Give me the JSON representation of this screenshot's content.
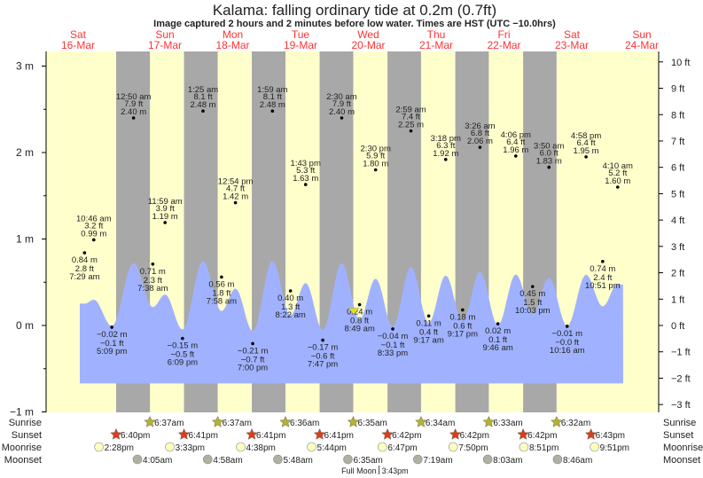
{
  "title": "Kalama: falling  ordinary tide at 0.2m (0.7ft)",
  "subtitle": "Image captured 2 hours and 2 minutes before low water. Times are HST (UTC −10.0hrs)",
  "colors": {
    "day": "#ffffcc",
    "night": "#a8a8a8",
    "tide": "#a0b2ff",
    "day_label": "#ff3333",
    "sunrise": "#b8b030",
    "sunset": "#e03a1a",
    "moonrise": "#ffffc0",
    "moonset": "#b0b0a0",
    "now_marker": "#e8e000"
  },
  "chart_data": {
    "type": "area",
    "title": "Kalama: falling  ordinary tide at 0.2m (0.7ft)",
    "left_axis": {
      "unit": "m",
      "range": [
        -1,
        3
      ],
      "ticks": [
        "3 m",
        "2 m",
        "1 m",
        "0 m",
        "−1 m"
      ],
      "values": [
        3,
        2,
        1,
        0,
        -1
      ]
    },
    "right_axis": {
      "unit": "ft",
      "ticks": [
        "10 ft",
        "9 ft",
        "8 ft",
        "7 ft",
        "6 ft",
        "5 ft",
        "4 ft",
        "3 ft",
        "2 ft",
        "1 ft",
        "0 ft",
        "−1 ft",
        "−2 ft",
        "−3 ft"
      ],
      "values": [
        10,
        9,
        8,
        7,
        6,
        5,
        4,
        3,
        2,
        1,
        0,
        -1,
        -2,
        -3
      ]
    },
    "days": [
      {
        "dow": "Sat",
        "date": "16-Mar"
      },
      {
        "dow": "Sun",
        "date": "17-Mar"
      },
      {
        "dow": "Mon",
        "date": "18-Mar"
      },
      {
        "dow": "Tue",
        "date": "19-Mar"
      },
      {
        "dow": "Wed",
        "date": "20-Mar"
      },
      {
        "dow": "Thu",
        "date": "21-Mar"
      },
      {
        "dow": "Fri",
        "date": "22-Mar"
      },
      {
        "dow": "Sat",
        "date": "23-Mar"
      },
      {
        "dow": "Sun",
        "date": "24-Mar"
      }
    ],
    "extremes": [
      {
        "day": 16,
        "time": "7:29 am",
        "m": "0.84",
        "ft": "2.8",
        "type": "low"
      },
      {
        "day": 16,
        "time": "10:46 am",
        "m": "0.99",
        "ft": "3.2",
        "type": "high"
      },
      {
        "day": 16,
        "time": "5:09 pm",
        "m": "−0.02",
        "ft": "−0.1",
        "type": "low"
      },
      {
        "day": 17,
        "time": "12:50 am",
        "m": "2.40",
        "ft": "7.9",
        "type": "high"
      },
      {
        "day": 17,
        "time": "7:38 am",
        "m": "0.71",
        "ft": "2.3",
        "type": "low"
      },
      {
        "day": 17,
        "time": "11:59 am",
        "m": "1.19",
        "ft": "3.9",
        "type": "high"
      },
      {
        "day": 17,
        "time": "6:09 pm",
        "m": "−0.15",
        "ft": "−0.5",
        "type": "low"
      },
      {
        "day": 18,
        "time": "1:25 am",
        "m": "2.48",
        "ft": "8.1",
        "type": "high"
      },
      {
        "day": 18,
        "time": "7:58 am",
        "m": "0.56",
        "ft": "1.8",
        "type": "low"
      },
      {
        "day": 18,
        "time": "12:54 pm",
        "m": "1.42",
        "ft": "4.7",
        "type": "high"
      },
      {
        "day": 18,
        "time": "7:00 pm",
        "m": "−0.21",
        "ft": "−0.7",
        "type": "low"
      },
      {
        "day": 19,
        "time": "1:59 am",
        "m": "2.48",
        "ft": "8.1",
        "type": "high"
      },
      {
        "day": 19,
        "time": "8:22 am",
        "m": "0.40",
        "ft": "1.3",
        "type": "low"
      },
      {
        "day": 19,
        "time": "1:43 pm",
        "m": "1.63",
        "ft": "5.3",
        "type": "high"
      },
      {
        "day": 19,
        "time": "7:47 pm",
        "m": "−0.17",
        "ft": "−0.6",
        "type": "low"
      },
      {
        "day": 20,
        "time": "2:30 am",
        "m": "2.40",
        "ft": "7.9",
        "type": "high"
      },
      {
        "day": 20,
        "time": "8:49 am",
        "m": "0.24",
        "ft": "0.8",
        "type": "low"
      },
      {
        "day": 20,
        "time": "2:30 pm",
        "m": "1.80",
        "ft": "5.9",
        "type": "high"
      },
      {
        "day": 20,
        "time": "8:33 pm",
        "m": "−0.04",
        "ft": "−0.1",
        "type": "low"
      },
      {
        "day": 21,
        "time": "2:59 am",
        "m": "2.25",
        "ft": "7.4",
        "type": "high"
      },
      {
        "day": 21,
        "time": "9:17 am",
        "m": "0.11",
        "ft": "0.4",
        "type": "low"
      },
      {
        "day": 21,
        "time": "3:18 pm",
        "m": "1.92",
        "ft": "6.3",
        "type": "high"
      },
      {
        "day": 21,
        "time": "9:17 pm",
        "m": "0.18",
        "ft": "0.6",
        "type": "low"
      },
      {
        "day": 22,
        "time": "3:26 am",
        "m": "2.06",
        "ft": "6.8",
        "type": "high"
      },
      {
        "day": 22,
        "time": "9:46 am",
        "m": "0.02",
        "ft": "0.1",
        "type": "low"
      },
      {
        "day": 22,
        "time": "4:06 pm",
        "m": "1.96",
        "ft": "6.4",
        "type": "high"
      },
      {
        "day": 22,
        "time": "10:03 pm",
        "m": "0.45",
        "ft": "1.5",
        "type": "low"
      },
      {
        "day": 23,
        "time": "3:50 am",
        "m": "1.83",
        "ft": "6.0",
        "type": "high"
      },
      {
        "day": 23,
        "time": "10:16 am",
        "m": "−0.01",
        "ft": "−0.0",
        "type": "low"
      },
      {
        "day": 23,
        "time": "4:58 pm",
        "m": "1.95",
        "ft": "6.4",
        "type": "high"
      },
      {
        "day": 23,
        "time": "10:51 pm",
        "m": "0.74",
        "ft": "2.4",
        "type": "low"
      },
      {
        "day": 24,
        "time": "4:10 am",
        "m": "1.60",
        "ft": "5.2",
        "type": "high"
      }
    ],
    "current": {
      "day": 20,
      "time": "6:47 am",
      "m": 0.2,
      "ft": 0.7
    }
  },
  "astro": {
    "rows": [
      {
        "label": "Sunrise",
        "icon": "sunrise-star-icon",
        "events": [
          {
            "day": 17,
            "time": "6:37am"
          },
          {
            "day": 18,
            "time": "6:37am"
          },
          {
            "day": 19,
            "time": "6:36am"
          },
          {
            "day": 20,
            "time": "6:35am"
          },
          {
            "day": 21,
            "time": "6:34am"
          },
          {
            "day": 22,
            "time": "6:33am"
          },
          {
            "day": 23,
            "time": "6:32am"
          }
        ]
      },
      {
        "label": "Sunset",
        "icon": "sunset-star-icon",
        "events": [
          {
            "day": 16,
            "time": "6:40pm"
          },
          {
            "day": 17,
            "time": "6:41pm"
          },
          {
            "day": 18,
            "time": "6:41pm"
          },
          {
            "day": 19,
            "time": "6:41pm"
          },
          {
            "day": 20,
            "time": "6:42pm"
          },
          {
            "day": 21,
            "time": "6:42pm"
          },
          {
            "day": 22,
            "time": "6:42pm"
          },
          {
            "day": 23,
            "time": "6:43pm"
          }
        ]
      },
      {
        "label": "Moonrise",
        "icon": "moonrise-icon",
        "events": [
          {
            "day": 16,
            "time": "2:28pm"
          },
          {
            "day": 17,
            "time": "3:33pm"
          },
          {
            "day": 18,
            "time": "4:38pm"
          },
          {
            "day": 19,
            "time": "5:44pm"
          },
          {
            "day": 20,
            "time": "6:47pm"
          },
          {
            "day": 21,
            "time": "7:50pm"
          },
          {
            "day": 22,
            "time": "8:51pm"
          },
          {
            "day": 23,
            "time": "9:51pm"
          }
        ]
      },
      {
        "label": "Moonset",
        "icon": "moonset-icon",
        "events": [
          {
            "day": 17,
            "time": "4:05am"
          },
          {
            "day": 18,
            "time": "4:58am"
          },
          {
            "day": 19,
            "time": "5:48am"
          },
          {
            "day": 20,
            "time": "6:35am"
          },
          {
            "day": 21,
            "time": "7:19am"
          },
          {
            "day": 22,
            "time": "8:03am"
          },
          {
            "day": 23,
            "time": "8:46am"
          }
        ]
      }
    ],
    "phase": {
      "label": "Full Moon",
      "day": 20,
      "time": "3:43pm"
    }
  }
}
